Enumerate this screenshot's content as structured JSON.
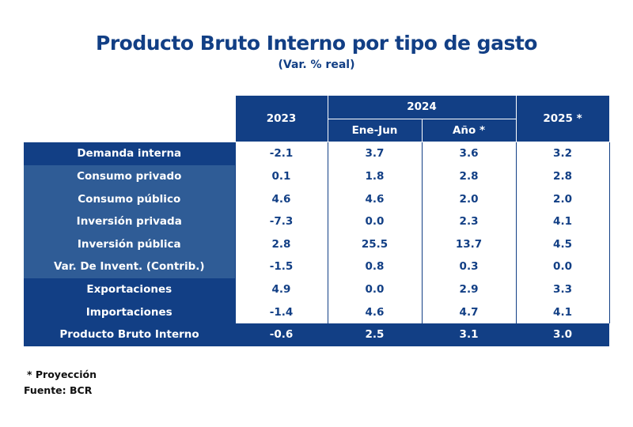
{
  "title": "Producto Bruto Interno por tipo de gasto",
  "subtitle": "(Var. % real)",
  "chart_data": {
    "type": "table",
    "title": "Producto Bruto Interno por tipo de gasto",
    "subtitle": "(Var. % real)",
    "header": {
      "y2023": "2023",
      "y2024": "2024",
      "ene_jun": "Ene-Jun",
      "anio": "Año *",
      "y2025": "2025 *"
    },
    "columns": [
      "2023",
      "2024 Ene-Jun",
      "2024 Año *",
      "2025 *"
    ],
    "rows": [
      {
        "label": "Demanda interna",
        "style": "dark",
        "values": [
          "-2.1",
          "3.7",
          "3.6",
          "3.2"
        ]
      },
      {
        "label": "Consumo privado",
        "style": "light",
        "values": [
          "0.1",
          "1.8",
          "2.8",
          "2.8"
        ]
      },
      {
        "label": "Consumo público",
        "style": "light",
        "values": [
          "4.6",
          "4.6",
          "2.0",
          "2.0"
        ]
      },
      {
        "label": "Inversión privada",
        "style": "light",
        "values": [
          "-7.3",
          "0.0",
          "2.3",
          "4.1"
        ]
      },
      {
        "label": "Inversión pública",
        "style": "light",
        "values": [
          "2.8",
          "25.5",
          "13.7",
          "4.5"
        ]
      },
      {
        "label": "Var. De Invent. (Contrib.)",
        "style": "light",
        "values": [
          "-1.5",
          "0.8",
          "0.3",
          "0.0"
        ]
      },
      {
        "label": "Exportaciones",
        "style": "dark",
        "values": [
          "4.9",
          "0.0",
          "2.9",
          "3.3"
        ]
      },
      {
        "label": "Importaciones",
        "style": "dark",
        "values": [
          "-1.4",
          "4.6",
          "4.7",
          "4.1"
        ]
      },
      {
        "label": "Producto Bruto Interno",
        "style": "total",
        "values": [
          "-0.6",
          "2.5",
          "3.1",
          "3.0"
        ]
      }
    ]
  },
  "notes": {
    "projection": "* Proyección",
    "source": "Fuente: BCR"
  }
}
